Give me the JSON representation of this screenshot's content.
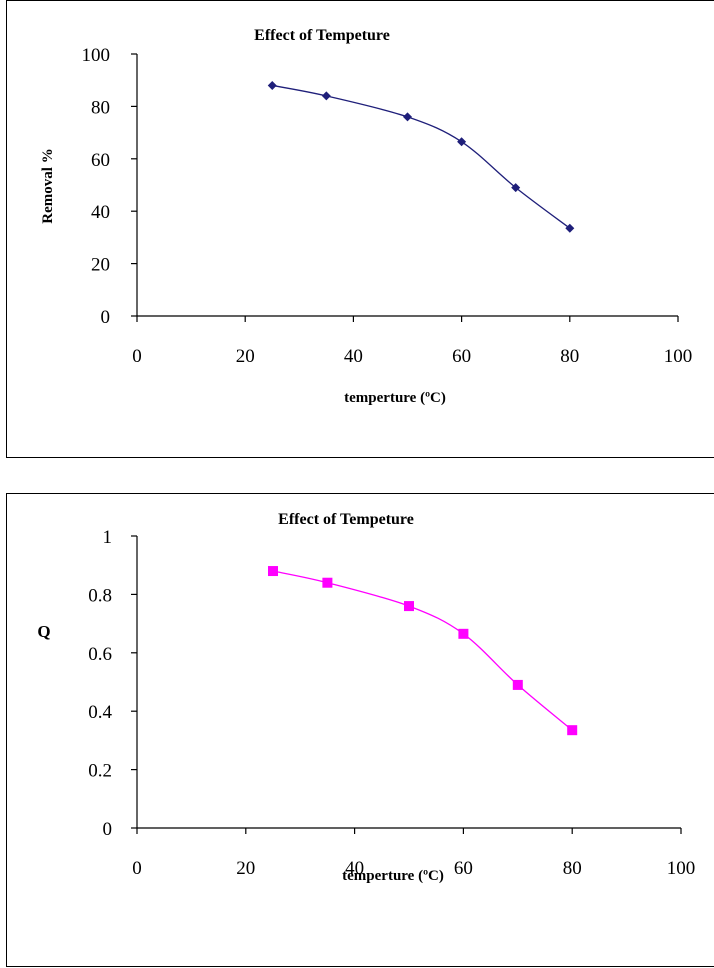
{
  "chart_data": [
    {
      "type": "line",
      "title": "Effect of Tempeture",
      "xlabel": "temperture  (ºC)",
      "ylabel": "Removal %",
      "xlim": [
        0,
        100
      ],
      "ylim": [
        0,
        100
      ],
      "x_ticks": [
        "0",
        "20",
        "40",
        "60",
        "80",
        "100"
      ],
      "y_ticks": [
        "0",
        "20",
        "40",
        "60",
        "80",
        "100"
      ],
      "grid": false,
      "marker": "diamond",
      "color": "#1F1F7A",
      "series": [
        {
          "x": [
            25,
            35,
            50,
            60,
            70,
            80
          ],
          "values": [
            88,
            84,
            76,
            66.5,
            49,
            33.5
          ]
        }
      ]
    },
    {
      "type": "line",
      "title": "Effect of Tempeture",
      "xlabel": "temperture  (ºC)",
      "ylabel": "Q",
      "xlim": [
        0,
        100
      ],
      "ylim": [
        0,
        1
      ],
      "x_ticks": [
        "0",
        "20",
        "40",
        "60",
        "80",
        "100"
      ],
      "y_ticks": [
        "0",
        "0.2",
        "0.4",
        "0.6",
        "0.8",
        "1"
      ],
      "grid": false,
      "marker": "square",
      "color": "#FF00FF",
      "series": [
        {
          "x": [
            25,
            35,
            50,
            60,
            70,
            80
          ],
          "values": [
            0.88,
            0.84,
            0.76,
            0.665,
            0.49,
            0.335
          ]
        }
      ]
    }
  ]
}
